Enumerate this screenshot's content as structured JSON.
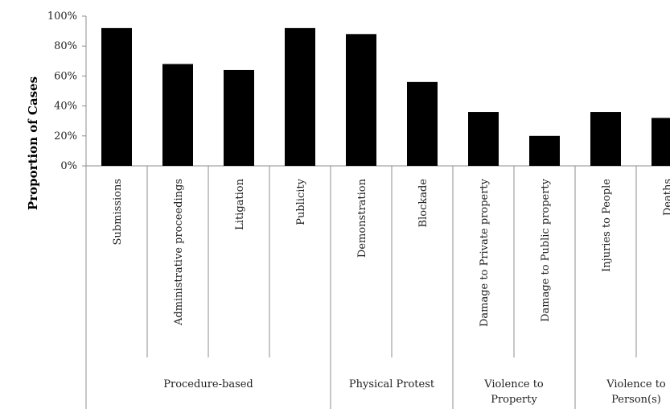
{
  "chart_data": {
    "type": "bar",
    "ylabel": "Proportion of Cases",
    "xlabel": "",
    "ylim": [
      0,
      100
    ],
    "yticks": [
      "0%",
      "20%",
      "40%",
      "60%",
      "80%",
      "100%"
    ],
    "grid": false,
    "bar_color": "#000000",
    "categories": [
      "Submissions",
      "Administrative proceedings",
      "Litigation",
      "Publicity",
      "Demonstration",
      "Blockade",
      "Damage to Private property",
      "Damage to Public property",
      "Injuries to People",
      "Deaths"
    ],
    "values": [
      92,
      68,
      64,
      92,
      88,
      56,
      36,
      20,
      36,
      32
    ],
    "groups": [
      {
        "label_lines": [
          "Procedure-based"
        ],
        "start": 0,
        "end": 3
      },
      {
        "label_lines": [
          "Physical Protest"
        ],
        "start": 4,
        "end": 5
      },
      {
        "label_lines": [
          "Violence to",
          "Property"
        ],
        "start": 6,
        "end": 7
      },
      {
        "label_lines": [
          "Violence to",
          "Person(s)"
        ],
        "start": 8,
        "end": 9
      }
    ]
  }
}
